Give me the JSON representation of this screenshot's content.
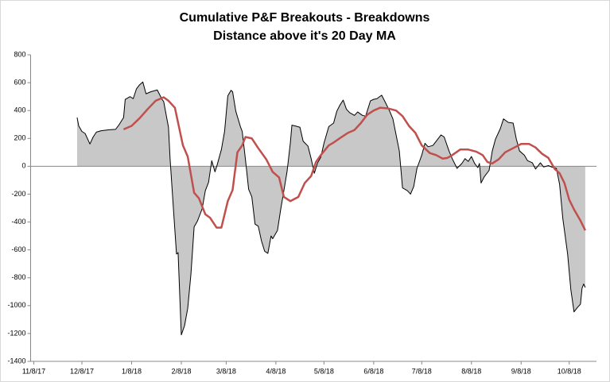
{
  "chart_data": {
    "type": "line",
    "title": "Cumulative P&F Breakouts - Breakdowns",
    "subtitle": "Distance above it's 20 Day MA",
    "xlim": [
      "2017-11-06",
      "2018-10-25"
    ],
    "xticks": [
      {
        "value": "2017-11-08",
        "label": "11/8/17"
      },
      {
        "value": "2017-12-08",
        "label": "12/8/17"
      },
      {
        "value": "2018-01-08",
        "label": "1/8/18"
      },
      {
        "value": "2018-02-08",
        "label": "2/8/18"
      },
      {
        "value": "2018-03-08",
        "label": "3/8/18"
      },
      {
        "value": "2018-04-08",
        "label": "4/8/18"
      },
      {
        "value": "2018-05-08",
        "label": "5/8/18"
      },
      {
        "value": "2018-06-08",
        "label": "6/8/18"
      },
      {
        "value": "2018-07-08",
        "label": "7/8/18"
      },
      {
        "value": "2018-08-08",
        "label": "8/8/18"
      },
      {
        "value": "2018-09-08",
        "label": "9/8/18"
      },
      {
        "value": "2018-10-08",
        "label": "10/8/18"
      }
    ],
    "ylim": [
      -1400,
      800
    ],
    "yticks": [
      -1400,
      -1200,
      -1000,
      -800,
      -600,
      -400,
      -200,
      0,
      200,
      400,
      600,
      800
    ],
    "series": [
      {
        "color": "#000000",
        "fill": "#c8c8c8",
        "x": [
          "2017-12-05",
          "2017-12-06",
          "2017-12-08",
          "2017-12-10",
          "2017-12-13",
          "2017-12-15",
          "2017-12-17",
          "2017-12-20",
          "2017-12-25",
          "2017-12-29",
          "2017-12-31",
          "2018-01-03",
          "2018-01-04",
          "2018-01-07",
          "2018-01-09",
          "2018-01-11",
          "2018-01-13",
          "2018-01-15",
          "2018-01-17",
          "2018-01-20",
          "2018-01-24",
          "2018-01-27",
          "2018-01-28",
          "2018-01-31",
          "2018-02-01",
          "2018-02-03",
          "2018-02-05",
          "2018-02-06",
          "2018-02-08",
          "2018-02-10",
          "2018-02-12",
          "2018-02-14",
          "2018-02-16",
          "2018-02-18",
          "2018-02-21",
          "2018-02-23",
          "2018-02-25",
          "2018-02-27",
          "2018-03-01",
          "2018-03-02",
          "2018-03-05",
          "2018-03-07",
          "2018-03-09",
          "2018-03-11",
          "2018-03-12",
          "2018-03-14",
          "2018-03-17",
          "2018-03-18",
          "2018-03-20",
          "2018-03-22",
          "2018-03-24",
          "2018-03-26",
          "2018-03-28",
          "2018-03-30",
          "2018-04-01",
          "2018-04-03",
          "2018-04-05",
          "2018-04-06",
          "2018-04-09",
          "2018-04-11",
          "2018-04-13",
          "2018-04-15",
          "2018-04-17",
          "2018-04-18",
          "2018-04-20",
          "2018-04-23",
          "2018-04-25",
          "2018-04-28",
          "2018-04-30",
          "2018-05-02",
          "2018-05-04",
          "2018-05-06",
          "2018-05-08",
          "2018-05-11",
          "2018-05-14",
          "2018-05-16",
          "2018-05-18",
          "2018-05-20",
          "2018-05-22",
          "2018-05-24",
          "2018-05-27",
          "2018-05-29",
          "2018-06-01",
          "2018-06-03",
          "2018-06-06",
          "2018-06-08",
          "2018-06-10",
          "2018-06-13",
          "2018-06-15",
          "2018-06-18",
          "2018-06-20",
          "2018-06-22",
          "2018-06-24",
          "2018-06-26",
          "2018-06-29",
          "2018-07-01",
          "2018-07-03",
          "2018-07-05",
          "2018-07-08",
          "2018-07-10",
          "2018-07-12",
          "2018-07-15",
          "2018-07-17",
          "2018-07-20",
          "2018-07-22",
          "2018-07-25",
          "2018-07-27",
          "2018-07-30",
          "2018-08-02",
          "2018-08-04",
          "2018-08-06",
          "2018-08-08",
          "2018-08-10",
          "2018-08-12",
          "2018-08-13",
          "2018-08-14",
          "2018-08-16",
          "2018-08-19",
          "2018-08-21",
          "2018-08-23",
          "2018-08-26",
          "2018-08-28",
          "2018-08-31",
          "2018-09-03",
          "2018-09-05",
          "2018-09-07",
          "2018-09-10",
          "2018-09-12",
          "2018-09-15",
          "2018-09-17",
          "2018-09-20",
          "2018-09-22",
          "2018-09-25",
          "2018-09-27",
          "2018-09-30",
          "2018-10-02",
          "2018-10-04",
          "2018-10-05",
          "2018-10-07",
          "2018-10-09",
          "2018-10-11",
          "2018-10-13",
          "2018-10-15",
          "2018-10-16",
          "2018-10-17",
          "2018-10-18"
        ],
        "values": [
          350,
          290,
          250,
          235,
          160,
          210,
          245,
          255,
          262,
          265,
          295,
          350,
          480,
          500,
          485,
          555,
          585,
          605,
          520,
          535,
          548,
          480,
          465,
          280,
          55,
          -290,
          -630,
          -620,
          -1210,
          -1145,
          -1020,
          -775,
          -435,
          -395,
          -305,
          -175,
          -115,
          40,
          -40,
          -5,
          120,
          250,
          505,
          545,
          535,
          395,
          280,
          250,
          50,
          -165,
          -220,
          -415,
          -430,
          -535,
          -610,
          -625,
          -500,
          -520,
          -460,
          -310,
          -175,
          -35,
          165,
          295,
          290,
          280,
          180,
          145,
          55,
          -50,
          25,
          65,
          165,
          285,
          310,
          395,
          440,
          475,
          410,
          385,
          365,
          390,
          365,
          360,
          470,
          480,
          485,
          510,
          465,
          395,
          340,
          225,
          110,
          -155,
          -175,
          -200,
          -145,
          -15,
          80,
          165,
          140,
          150,
          180,
          225,
          210,
          110,
          55,
          -15,
          20,
          55,
          35,
          70,
          20,
          -10,
          20,
          -120,
          -75,
          -30,
          110,
          195,
          270,
          340,
          315,
          310,
          195,
          110,
          80,
          40,
          25,
          -20,
          25,
          -5,
          5,
          -5,
          -15,
          -130,
          -375,
          -460,
          -630,
          -885,
          -1045,
          -1015,
          -990,
          -875,
          -845,
          -870
        ]
      },
      {
        "color": "#c0504d",
        "x": [
          "2018-01-03",
          "2018-01-08",
          "2018-01-13",
          "2018-01-18",
          "2018-01-23",
          "2018-01-28",
          "2018-01-31",
          "2018-02-04",
          "2018-02-09",
          "2018-02-12",
          "2018-02-16",
          "2018-02-19",
          "2018-02-23",
          "2018-02-26",
          "2018-03-02",
          "2018-03-05",
          "2018-03-09",
          "2018-03-12",
          "2018-03-15",
          "2018-03-18",
          "2018-03-20",
          "2018-03-24",
          "2018-03-28",
          "2018-04-02",
          "2018-04-06",
          "2018-04-10",
          "2018-04-13",
          "2018-04-17",
          "2018-04-22",
          "2018-04-26",
          "2018-04-30",
          "2018-05-03",
          "2018-05-06",
          "2018-05-11",
          "2018-05-14",
          "2018-05-19",
          "2018-05-23",
          "2018-05-27",
          "2018-05-31",
          "2018-06-04",
          "2018-06-08",
          "2018-06-12",
          "2018-06-17",
          "2018-06-22",
          "2018-06-26",
          "2018-06-30",
          "2018-07-04",
          "2018-07-08",
          "2018-07-13",
          "2018-07-17",
          "2018-07-21",
          "2018-07-24",
          "2018-07-27",
          "2018-08-01",
          "2018-08-06",
          "2018-08-11",
          "2018-08-15",
          "2018-08-18",
          "2018-08-21",
          "2018-08-25",
          "2018-08-29",
          "2018-09-03",
          "2018-09-08",
          "2018-09-13",
          "2018-09-17",
          "2018-09-21",
          "2018-09-25",
          "2018-09-29",
          "2018-10-02",
          "2018-10-05",
          "2018-10-08",
          "2018-10-11",
          "2018-10-15",
          "2018-10-18"
        ],
        "values": [
          265,
          290,
          345,
          410,
          470,
          495,
          470,
          420,
          150,
          70,
          -190,
          -230,
          -345,
          -370,
          -440,
          -440,
          -250,
          -170,
          100,
          150,
          210,
          200,
          130,
          50,
          -40,
          -80,
          -220,
          -250,
          -220,
          -120,
          -70,
          30,
          80,
          150,
          170,
          210,
          240,
          260,
          310,
          370,
          400,
          420,
          415,
          400,
          360,
          290,
          240,
          150,
          95,
          80,
          55,
          60,
          80,
          120,
          120,
          105,
          80,
          30,
          20,
          50,
          100,
          130,
          160,
          160,
          135,
          90,
          60,
          -20,
          -50,
          -120,
          -240,
          -310,
          -390,
          -460
        ]
      }
    ]
  }
}
